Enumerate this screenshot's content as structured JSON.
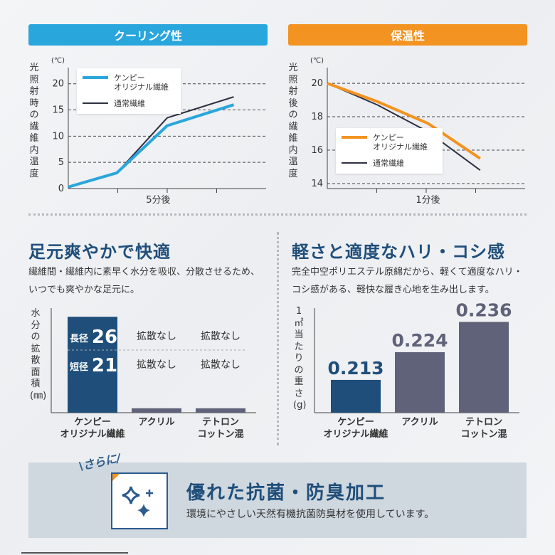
{
  "colors": {
    "cool": "#29a6dc",
    "warm": "#f29322",
    "navy": "#1f4e7a",
    "gray_bar": "#5f6278",
    "normal_line": "#2e3042"
  },
  "banners": {
    "cooling": "クーリング性",
    "warming": "保温性"
  },
  "chart_data": [
    {
      "type": "line",
      "title": "クーリング性",
      "ylabel": "光照射時の繊維内温度",
      "unit": "(℃)",
      "yticks": [
        "0",
        "5",
        "10",
        "15",
        "20"
      ],
      "ylim": [
        0,
        22
      ],
      "xlim": [
        0,
        11
      ],
      "xtick_label": "5分後",
      "xtick_at": 5,
      "legend_position": "top-left",
      "series": [
        {
          "name": "ケンピー\nオリジナル繊維",
          "x": [
            0,
            2.7,
            5.5,
            9.2
          ],
          "y": [
            0.3,
            3,
            12,
            16
          ],
          "color": "#29a6dc",
          "width": 4
        },
        {
          "name": "通常繊維",
          "x": [
            0,
            2.7,
            5.5,
            9.2
          ],
          "y": [
            0.3,
            3,
            13.5,
            17.5
          ],
          "color": "#2e3042",
          "width": 2
        }
      ]
    },
    {
      "type": "line",
      "title": "保温性",
      "ylabel": "光照射後の繊維内温度",
      "unit": "(℃)",
      "yticks": [
        "14",
        "16",
        "18",
        "20"
      ],
      "ylim": [
        13.7,
        20.6
      ],
      "xlim": [
        0,
        11
      ],
      "xtick_label": "1分後",
      "xtick_at": 5.6,
      "legend_position": "bottom-left",
      "series": [
        {
          "name": "ケンピー\nオリジナル繊維",
          "x": [
            0,
            2.8,
            5.6,
            8.5
          ],
          "y": [
            20,
            18.9,
            17.6,
            15.5
          ],
          "color": "#f29322",
          "width": 4
        },
        {
          "name": "通常繊維",
          "x": [
            0,
            2.8,
            5.6,
            8.5
          ],
          "y": [
            20,
            18.7,
            17.1,
            14.8
          ],
          "color": "#2e3042",
          "width": 2
        }
      ]
    },
    {
      "type": "bar",
      "title": "足元爽やかで快適",
      "ylabel": "水分の拡散面積(㎜)",
      "categories": [
        "ケンピー\nオリジナル繊維",
        "アクリル",
        "テトロン\nコットン混"
      ],
      "values": [
        26,
        1.2,
        1.2
      ],
      "value_labels": [
        {
          "long_label": "長径",
          "long_value": "26",
          "short_label": "短径",
          "short_value": "21"
        },
        {
          "long": "拡散なし",
          "short": "拡散なし"
        },
        {
          "long": "拡散なし",
          "short": "拡散なし"
        }
      ],
      "ylim": [
        0,
        27
      ]
    },
    {
      "type": "bar",
      "title": "軽さと適度なハリ・コシ感",
      "ylabel": "1㎡当たりの重さ(g)",
      "categories": [
        "ケンピー\nオリジナル繊維",
        "アクリル",
        "テトロン\nコットン混"
      ],
      "values": [
        0.213,
        0.224,
        0.236
      ],
      "value_labels": [
        "0.213",
        "0.224",
        "0.236"
      ],
      "ylim": [
        0.2,
        0.2395
      ]
    }
  ],
  "sections": {
    "left_title": "足元爽やかで快適",
    "left_desc": "繊維間・繊維内に素早く水分を吸収、分散させるため、いつでも爽やかな足元に。",
    "right_title": "軽さと適度なハリ・コシ感",
    "right_desc": "完全中空ポリエステル原綿だから、軽くて適度なハリ・コシ感がある、軽快な履き心地を生み出します。"
  },
  "bottom": {
    "sarani": "\\さらに/",
    "title": "優れた抗菌・防臭加工",
    "subtitle": "環境にやさしい天然有機抗菌防臭材を使用しています。",
    "icon": "sparkle-icon"
  }
}
